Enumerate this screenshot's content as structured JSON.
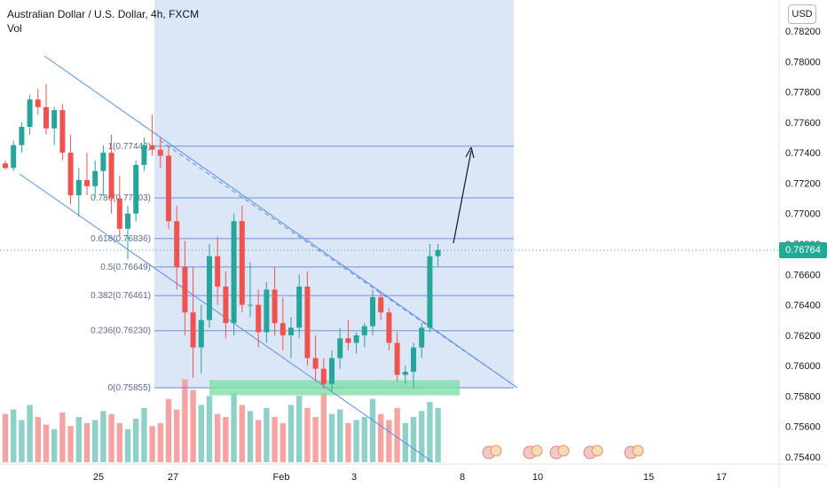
{
  "header": {
    "title": "Australian Dollar / U.S. Dollar, 4h, FXCM",
    "subtitle": "Vol",
    "currency": "USD",
    "last_price": "0.76764"
  },
  "colors": {
    "up": "#26a69a",
    "down": "#ef5350",
    "vol_up": "#8fd0c8",
    "vol_down": "#f6a3a3",
    "channel": "#5b8fe0",
    "fib": "#5b7bd0",
    "fib_fill": "#d7e3f6",
    "support_zone": "#7ee0a8",
    "last_price_tag": "#22ab94"
  },
  "chart_data": {
    "type": "candlestick",
    "title": "Australian Dollar / U.S. Dollar, 4h, FXCM",
    "ylim": [
      0.7535,
      0.783
    ],
    "y_ticks": [
      "0.78200",
      "0.78000",
      "0.77800",
      "0.77600",
      "0.77400",
      "0.77200",
      "0.77000",
      "0.76800",
      "0.76600",
      "0.76400",
      "0.76200",
      "0.76000",
      "0.75800",
      "0.75600",
      "0.75400"
    ],
    "x_ticks": [
      "25",
      "27",
      "Feb",
      "3",
      "8",
      "10",
      "15",
      "17"
    ],
    "fib_levels": [
      {
        "label": "1(0.77443)",
        "value": 0.77443
      },
      {
        "label": "0.786(0.77103)",
        "value": 0.77103
      },
      {
        "label": "0.618(0.76836)",
        "value": 0.76836
      },
      {
        "label": "0.5(0.76649)",
        "value": 0.76649
      },
      {
        "label": "0.382(0.76461)",
        "value": 0.76461
      },
      {
        "label": "0.236(0.76230)",
        "value": 0.7623
      },
      {
        "label": "0(0.75855)",
        "value": 0.75855
      }
    ],
    "candles": [
      [
        0.7733,
        0.7735,
        0.7729,
        0.773
      ],
      [
        0.773,
        0.7748,
        0.7728,
        0.7745
      ],
      [
        0.7745,
        0.776,
        0.774,
        0.7757
      ],
      [
        0.7757,
        0.7778,
        0.7752,
        0.7775
      ],
      [
        0.7775,
        0.7782,
        0.7765,
        0.777
      ],
      [
        0.777,
        0.7785,
        0.7752,
        0.7756
      ],
      [
        0.7756,
        0.777,
        0.7745,
        0.7768
      ],
      [
        0.7768,
        0.7772,
        0.7735,
        0.774
      ],
      [
        0.774,
        0.7752,
        0.7706,
        0.7712
      ],
      [
        0.7712,
        0.773,
        0.7698,
        0.7722
      ],
      [
        0.7722,
        0.774,
        0.7712,
        0.7718
      ],
      [
        0.7718,
        0.7735,
        0.771,
        0.7728
      ],
      [
        0.7728,
        0.7745,
        0.7712,
        0.774
      ],
      [
        0.774,
        0.7752,
        0.77,
        0.771
      ],
      [
        0.771,
        0.7725,
        0.7685,
        0.769
      ],
      [
        0.769,
        0.7705,
        0.767,
        0.77
      ],
      [
        0.77,
        0.7735,
        0.7695,
        0.7732
      ],
      [
        0.7732,
        0.775,
        0.7728,
        0.7745
      ],
      [
        0.7745,
        0.7765,
        0.7738,
        0.7742
      ],
      [
        0.7742,
        0.775,
        0.773,
        0.7738
      ],
      [
        0.7738,
        0.7745,
        0.769,
        0.7695
      ],
      [
        0.7695,
        0.7705,
        0.765,
        0.7665
      ],
      [
        0.7665,
        0.7682,
        0.762,
        0.7635
      ],
      [
        0.7635,
        0.7665,
        0.7592,
        0.7612
      ],
      [
        0.7612,
        0.764,
        0.7595,
        0.763
      ],
      [
        0.763,
        0.768,
        0.7625,
        0.7672
      ],
      [
        0.7672,
        0.7685,
        0.764,
        0.7652
      ],
      [
        0.7652,
        0.7662,
        0.7618,
        0.7628
      ],
      [
        0.7628,
        0.77,
        0.762,
        0.7695
      ],
      [
        0.7695,
        0.7705,
        0.7635,
        0.764
      ],
      [
        0.764,
        0.7668,
        0.7632,
        0.764
      ],
      [
        0.764,
        0.765,
        0.7612,
        0.7622
      ],
      [
        0.7622,
        0.7655,
        0.7615,
        0.765
      ],
      [
        0.765,
        0.7665,
        0.762,
        0.7628
      ],
      [
        0.7628,
        0.7645,
        0.761,
        0.762
      ],
      [
        0.762,
        0.7632,
        0.7605,
        0.7625
      ],
      [
        0.7625,
        0.766,
        0.7618,
        0.7652
      ],
      [
        0.7652,
        0.7662,
        0.76,
        0.7605
      ],
      [
        0.7605,
        0.762,
        0.759,
        0.7598
      ],
      [
        0.7598,
        0.7605,
        0.7585,
        0.7588
      ],
      [
        0.7588,
        0.761,
        0.7583,
        0.7605
      ],
      [
        0.7605,
        0.7625,
        0.7598,
        0.7618
      ],
      [
        0.7618,
        0.763,
        0.761,
        0.7615
      ],
      [
        0.7615,
        0.7622,
        0.7608,
        0.762
      ],
      [
        0.762,
        0.7628,
        0.7612,
        0.7626
      ],
      [
        0.7626,
        0.765,
        0.762,
        0.7645
      ],
      [
        0.7645,
        0.7648,
        0.763,
        0.7635
      ],
      [
        0.7635,
        0.7638,
        0.761,
        0.7615
      ],
      [
        0.7615,
        0.7622,
        0.759,
        0.7594
      ],
      [
        0.7594,
        0.76,
        0.7588,
        0.7596
      ],
      [
        0.7596,
        0.7615,
        0.7585,
        0.7612
      ],
      [
        0.7612,
        0.7628,
        0.7605,
        0.7625
      ],
      [
        0.7625,
        0.768,
        0.7622,
        0.7672
      ],
      [
        0.7672,
        0.768,
        0.7665,
        0.7676
      ]
    ],
    "volume": [
      32,
      35,
      28,
      38,
      30,
      25,
      22,
      33,
      24,
      30,
      26,
      28,
      34,
      32,
      26,
      22,
      29,
      36,
      24,
      26,
      42,
      35,
      55,
      48,
      38,
      44,
      32,
      30,
      46,
      38,
      34,
      28,
      36,
      30,
      26,
      38,
      44,
      36,
      30,
      46,
      32,
      35,
      26,
      28,
      30,
      42,
      32,
      28,
      36,
      26,
      30,
      34,
      40,
      36
    ]
  }
}
